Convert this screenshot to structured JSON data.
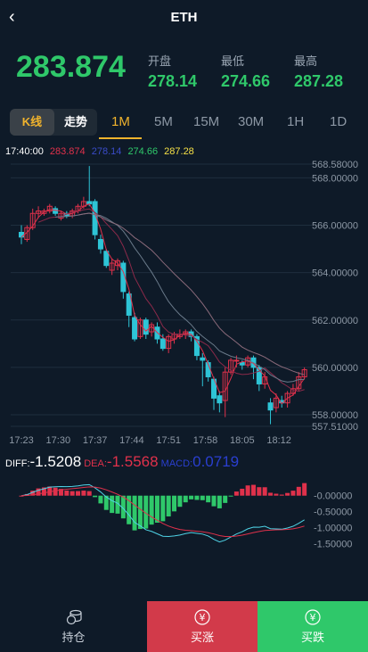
{
  "header": {
    "title": "ETH",
    "back_icon": "chevron-left-icon"
  },
  "quote": {
    "price": "283.874",
    "open_label": "开盘",
    "open": "278.14",
    "low_label": "最低",
    "low": "274.66",
    "high_label": "最高",
    "high": "287.28"
  },
  "tabs": {
    "kline": "K线",
    "trend": "走势",
    "timeframes": [
      "1M",
      "5M",
      "15M",
      "30M",
      "1H",
      "1D"
    ],
    "active": "1M"
  },
  "candle_info": {
    "time": "17:40:00",
    "v1": "283.874",
    "v2": "278.14",
    "v3": "274.66",
    "v4": "287.28"
  },
  "macd_info": {
    "diff_label": "DIFF:",
    "diff": "-1.5208",
    "dea_label": "DEA:",
    "dea": "-1.5568",
    "macd_label": "MACD:",
    "macd": "0.0719"
  },
  "bottom": {
    "hold": "持仓",
    "buy_up": "买涨",
    "buy_down": "买跌"
  },
  "chart_data": [
    {
      "type": "candlestick",
      "y_ticks": [
        "568.58000",
        "568.00000",
        "566.00000",
        "564.00000",
        "562.00000",
        "560.00000",
        "558.00000",
        "557.51000"
      ],
      "x_ticks": [
        "17:23",
        "17:30",
        "17:37",
        "17:44",
        "17:51",
        "17:58",
        "18:05",
        "18:12"
      ],
      "ylim": [
        557.51,
        568.58
      ],
      "candles": [
        [
          565.7,
          565.5,
          566.0,
          565.2
        ],
        [
          565.4,
          565.9,
          566.0,
          565.3
        ],
        [
          565.9,
          566.5,
          566.7,
          565.8
        ],
        [
          566.5,
          566.6,
          566.8,
          566.3
        ],
        [
          566.5,
          566.6,
          566.7,
          566.4
        ],
        [
          566.6,
          566.8,
          566.9,
          566.5
        ],
        [
          566.7,
          566.5,
          566.8,
          566.4
        ],
        [
          566.3,
          566.5,
          566.6,
          566.2
        ],
        [
          566.5,
          566.4,
          566.6,
          566.3
        ],
        [
          566.4,
          566.6,
          566.7,
          566.3
        ],
        [
          566.6,
          566.8,
          566.9,
          566.5
        ],
        [
          566.8,
          567.0,
          567.2,
          566.7
        ],
        [
          567.0,
          566.9,
          568.5,
          566.8
        ],
        [
          567.0,
          565.6,
          567.1,
          565.4
        ],
        [
          565.4,
          565.0,
          565.6,
          564.8
        ],
        [
          564.9,
          564.3,
          565.0,
          564.2
        ],
        [
          564.1,
          564.4,
          564.6,
          563.9
        ],
        [
          564.3,
          564.5,
          564.6,
          564.1
        ],
        [
          564.4,
          563.2,
          564.5,
          562.9
        ],
        [
          563.1,
          562.2,
          563.2,
          561.7
        ],
        [
          562.1,
          561.2,
          562.3,
          561.1
        ],
        [
          561.3,
          562.0,
          562.1,
          561.2
        ],
        [
          562.0,
          561.4,
          562.1,
          561.2
        ],
        [
          561.5,
          561.8,
          561.9,
          561.3
        ],
        [
          561.7,
          561.2,
          561.9,
          561.0
        ],
        [
          561.2,
          560.8,
          561.4,
          560.7
        ],
        [
          560.8,
          561.3,
          561.4,
          560.6
        ],
        [
          561.2,
          561.4,
          561.5,
          561.0
        ],
        [
          561.3,
          561.4,
          561.6,
          561.2
        ],
        [
          561.4,
          561.5,
          561.6,
          561.2
        ],
        [
          561.5,
          561.3,
          561.6,
          561.1
        ],
        [
          561.3,
          560.5,
          561.4,
          560.3
        ],
        [
          560.4,
          560.3,
          560.6,
          559.2
        ],
        [
          560.2,
          559.6,
          560.3,
          559.4
        ],
        [
          559.5,
          558.7,
          559.6,
          558.2
        ],
        [
          558.8,
          558.5,
          559.0,
          558.1
        ],
        [
          558.6,
          559.8,
          560.0,
          557.9
        ],
        [
          559.8,
          560.3,
          560.4,
          559.7
        ],
        [
          560.3,
          560.3,
          560.5,
          560.0
        ],
        [
          560.2,
          560.1,
          560.3,
          559.9
        ],
        [
          560.1,
          560.4,
          560.5,
          560.0
        ],
        [
          560.4,
          560.0,
          560.5,
          559.5
        ],
        [
          560.0,
          559.3,
          560.1,
          559.0
        ],
        [
          559.3,
          559.6,
          559.8,
          559.1
        ],
        [
          558.5,
          558.2,
          558.7,
          557.6
        ],
        [
          558.3,
          558.7,
          558.9,
          558.1
        ],
        [
          558.6,
          558.5,
          558.8,
          558.3
        ],
        [
          558.5,
          558.9,
          559.0,
          558.3
        ],
        [
          558.9,
          559.1,
          559.3,
          558.8
        ],
        [
          559.1,
          559.6,
          559.8,
          559.0
        ],
        [
          559.6,
          559.9,
          560.0,
          559.5
        ]
      ]
    },
    {
      "type": "bar",
      "title": "MACD",
      "y_ticks": [
        "-0.00000",
        "-0.50000",
        "-1.00000",
        "-1.50000"
      ],
      "ylim": [
        -1.8,
        0.3
      ]
    }
  ]
}
